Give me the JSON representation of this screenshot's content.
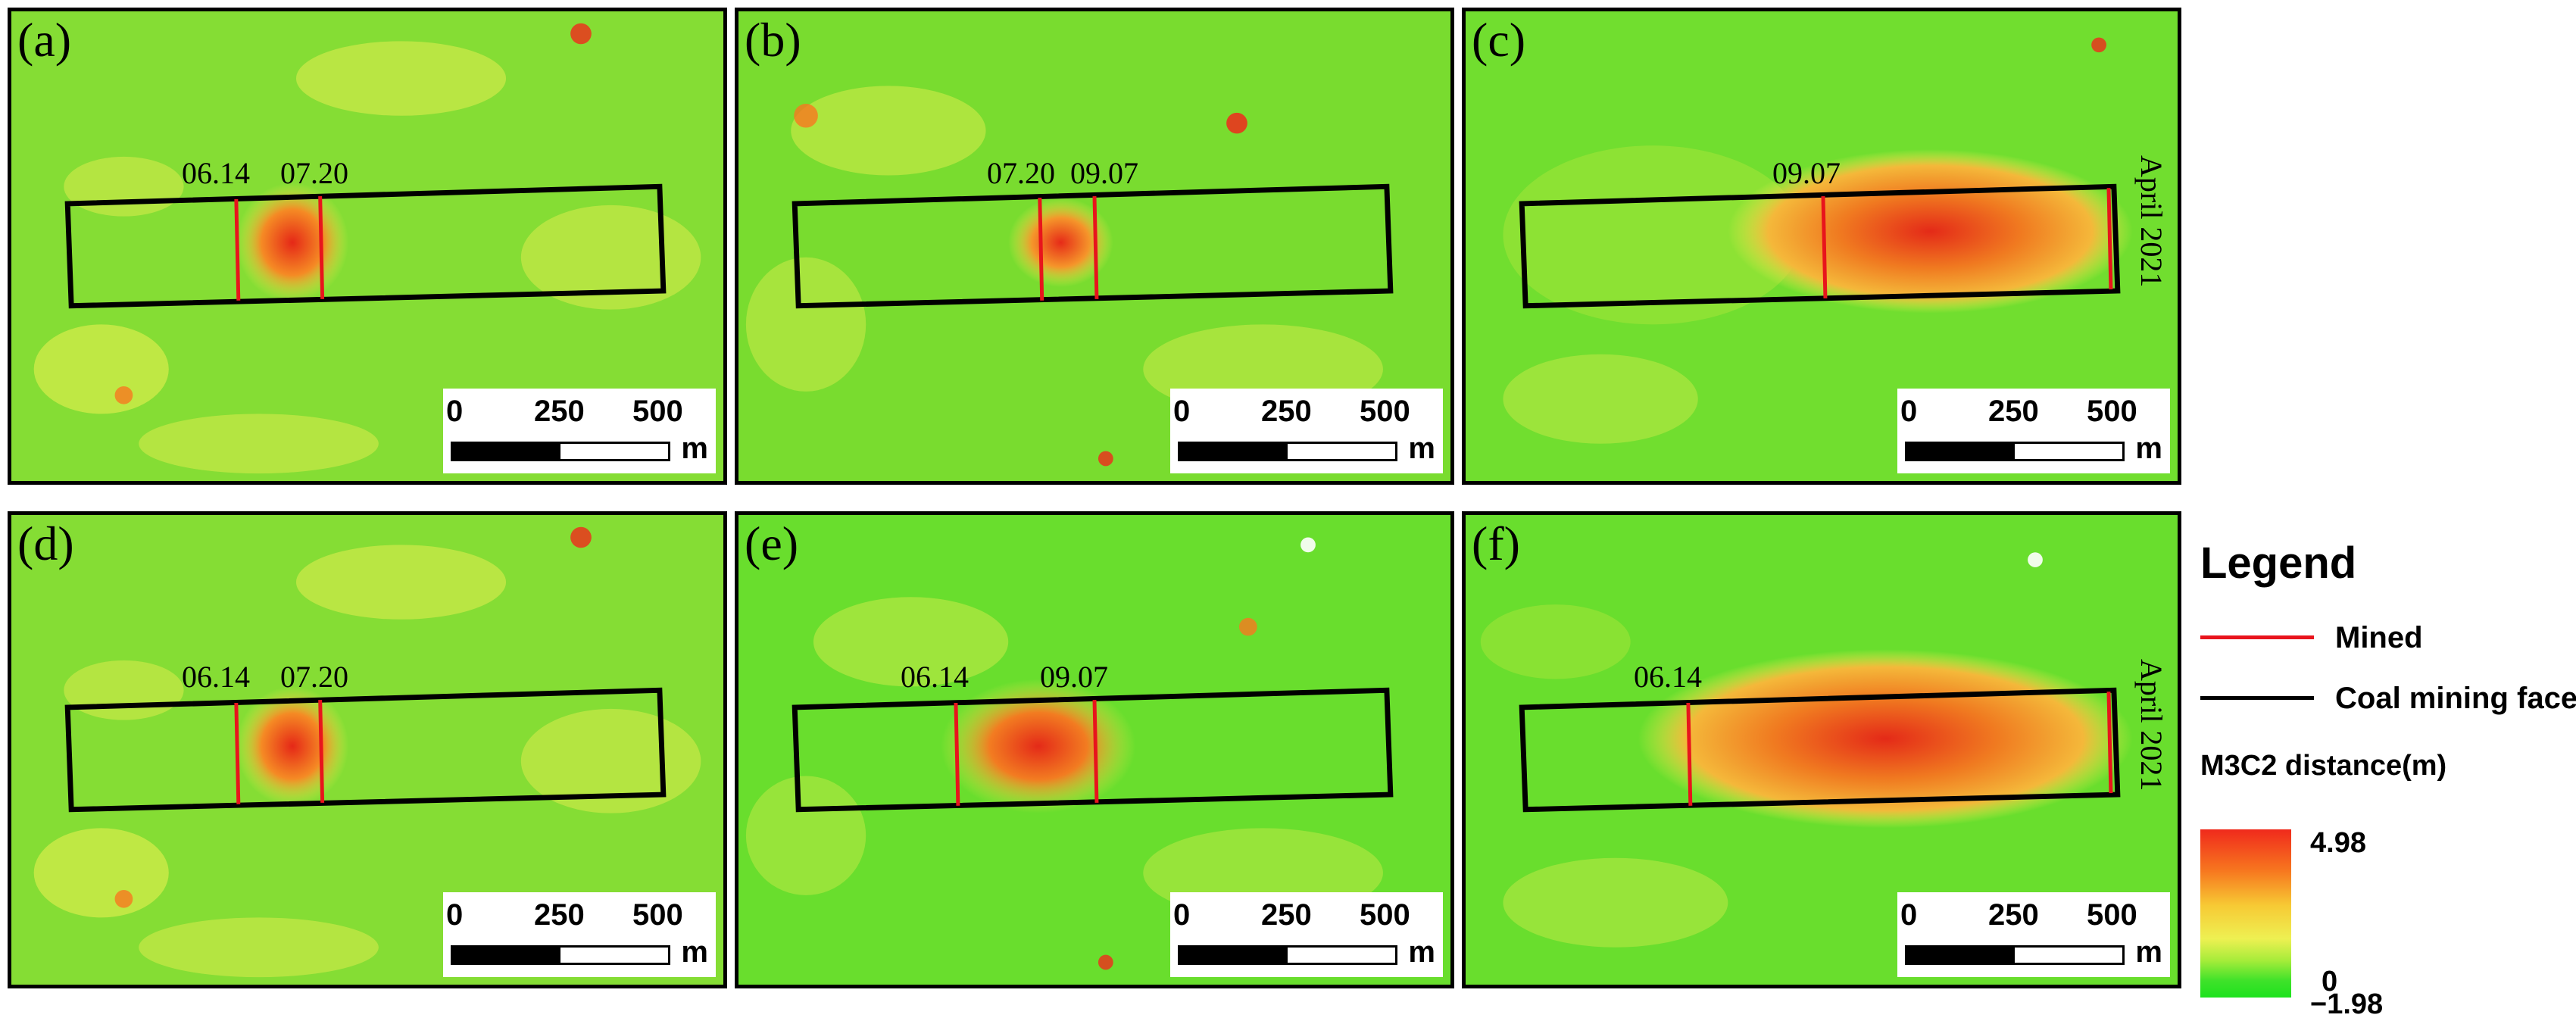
{
  "figure": {
    "panels": [
      {
        "label": "(a)",
        "dates": [
          "06.14",
          "07.20"
        ],
        "end_label": ""
      },
      {
        "label": "(b)",
        "dates": [
          "07.20",
          "09.07"
        ],
        "end_label": ""
      },
      {
        "label": "(c)",
        "dates": [
          "09.07"
        ],
        "end_label": "April 2021"
      },
      {
        "label": "(d)",
        "dates": [
          "06.14",
          "07.20"
        ],
        "end_label": ""
      },
      {
        "label": "(e)",
        "dates": [
          "06.14",
          "09.07"
        ],
        "end_label": ""
      },
      {
        "label": "(f)",
        "dates": [
          "06.14"
        ],
        "end_label": "April 2021"
      }
    ],
    "scalebar": {
      "ticks": [
        "0",
        "250",
        "500"
      ],
      "unit": "m"
    }
  },
  "legend": {
    "title": "Legend",
    "items": [
      {
        "label": "Mined",
        "color": "#e8141c"
      },
      {
        "label": "Coal mining face",
        "color": "#000000"
      }
    ],
    "ramp_title": "M3C2 distance(m)",
    "ramp_values": {
      "max": "4.98",
      "zero": "0",
      "min": "−1.98"
    }
  },
  "colors": {
    "green": "#3fe22a",
    "yellow": "#eef052",
    "orange": "#f7781f",
    "red": "#f02a1c"
  }
}
